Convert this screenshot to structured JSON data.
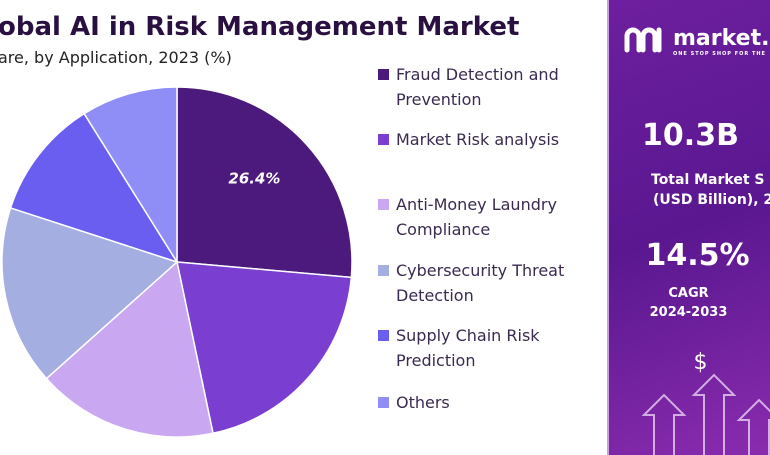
{
  "chart_data": {
    "type": "pie",
    "title": "obal AI in Risk Management Market",
    "subtitle": "are, by Application, 2023 (%)",
    "categories": [
      "Fraud Detection and Prevention",
      "Market Risk analysis",
      "Anti-Money Laundry Compliance",
      "Cybersecurity Threat Detection",
      "Supply Chain Risk Prediction",
      "Others"
    ],
    "values": [
      26.4,
      20.3,
      16.7,
      16.6,
      11.1,
      8.9
    ],
    "value_labels": [
      "26.4%",
      null,
      null,
      null,
      null,
      null
    ],
    "colors": [
      "#4b1a7c",
      "#7a3fd0",
      "#caa8f1",
      "#a4aee0",
      "#6a5ef0",
      "#8e8ef6"
    ]
  },
  "panel": {
    "logo": "market.",
    "tagline": "ONE STOP SHOP FOR THE",
    "market_size": "10.3B",
    "market_size_label": [
      "Total Market S",
      "(USD Billion), 2"
    ],
    "cagr": "14.5%",
    "cagr_label": [
      "CAGR",
      "2024-2033"
    ],
    "icon": "$"
  }
}
